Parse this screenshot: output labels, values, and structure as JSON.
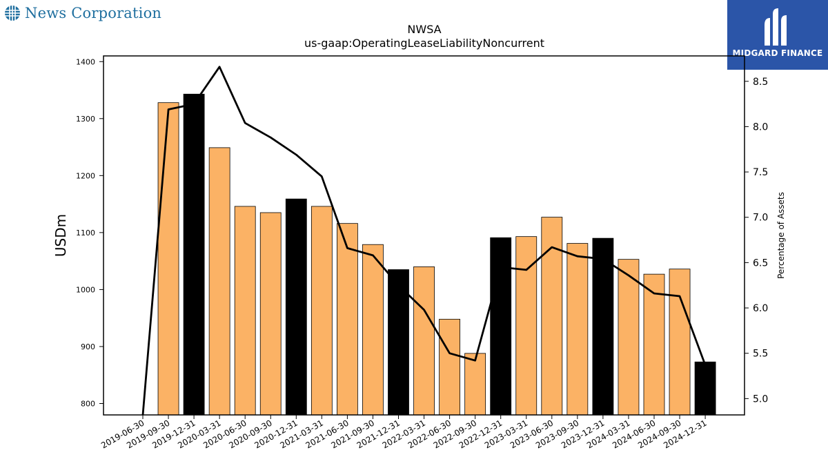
{
  "company_logo": {
    "name": "News Corporation",
    "icon": "globe-icon",
    "color": "#1f6f9f"
  },
  "brand": {
    "name": "MIDGARD FINANCE",
    "icon": "midgard-logo-icon",
    "background": "#2b55a8"
  },
  "chart_data": {
    "type": "bar",
    "title": "NWSA",
    "subtitle": "us-gaap:OperatingLeaseLiabilityNoncurrent",
    "ylabel": "USDm",
    "y2label": "Percentage of Assets",
    "ylim": [
      780,
      1410
    ],
    "y2lim": [
      4.82,
      8.78
    ],
    "yticks": [
      800,
      900,
      1000,
      1100,
      1200,
      1300,
      1400
    ],
    "y2ticks": [
      5.0,
      5.5,
      6.0,
      6.5,
      7.0,
      7.5,
      8.0,
      8.5
    ],
    "grid": false,
    "categories": [
      "2019-06-30",
      "2019-09-30",
      "2019-12-31",
      "2020-03-31",
      "2020-06-30",
      "2020-09-30",
      "2020-12-31",
      "2021-03-31",
      "2021-06-30",
      "2021-09-30",
      "2021-12-31",
      "2022-03-31",
      "2022-06-30",
      "2022-09-30",
      "2022-12-31",
      "2023-03-31",
      "2023-06-30",
      "2023-09-30",
      "2023-12-31",
      "2024-03-31",
      "2024-06-30",
      "2024-09-30",
      "2024-12-31"
    ],
    "series": [
      {
        "type": "bar",
        "values": [
          null,
          1328,
          1343,
          1249,
          1146,
          1135,
          1159,
          1146,
          1116,
          1079,
          1035,
          1040,
          948,
          888,
          1091,
          1093,
          1127,
          1081,
          1090,
          1053,
          1027,
          1036,
          873
        ],
        "colors": [
          "#fbb265",
          "#fbb265",
          "#000000",
          "#fbb265",
          "#fbb265",
          "#fbb265",
          "#000000",
          "#fbb265",
          "#fbb265",
          "#fbb265",
          "#000000",
          "#fbb265",
          "#fbb265",
          "#fbb265",
          "#000000",
          "#fbb265",
          "#fbb265",
          "#fbb265",
          "#000000",
          "#fbb265",
          "#fbb265",
          "#fbb265",
          "#000000"
        ]
      },
      {
        "type": "line",
        "axis": "right",
        "color": "#000000",
        "values": [
          4.82,
          8.19,
          8.25,
          8.66,
          8.04,
          7.88,
          7.69,
          7.45,
          6.66,
          6.58,
          6.25,
          5.98,
          5.5,
          5.42,
          6.45,
          6.42,
          6.67,
          6.57,
          6.54,
          6.36,
          6.16,
          6.13,
          5.37
        ]
      }
    ]
  }
}
